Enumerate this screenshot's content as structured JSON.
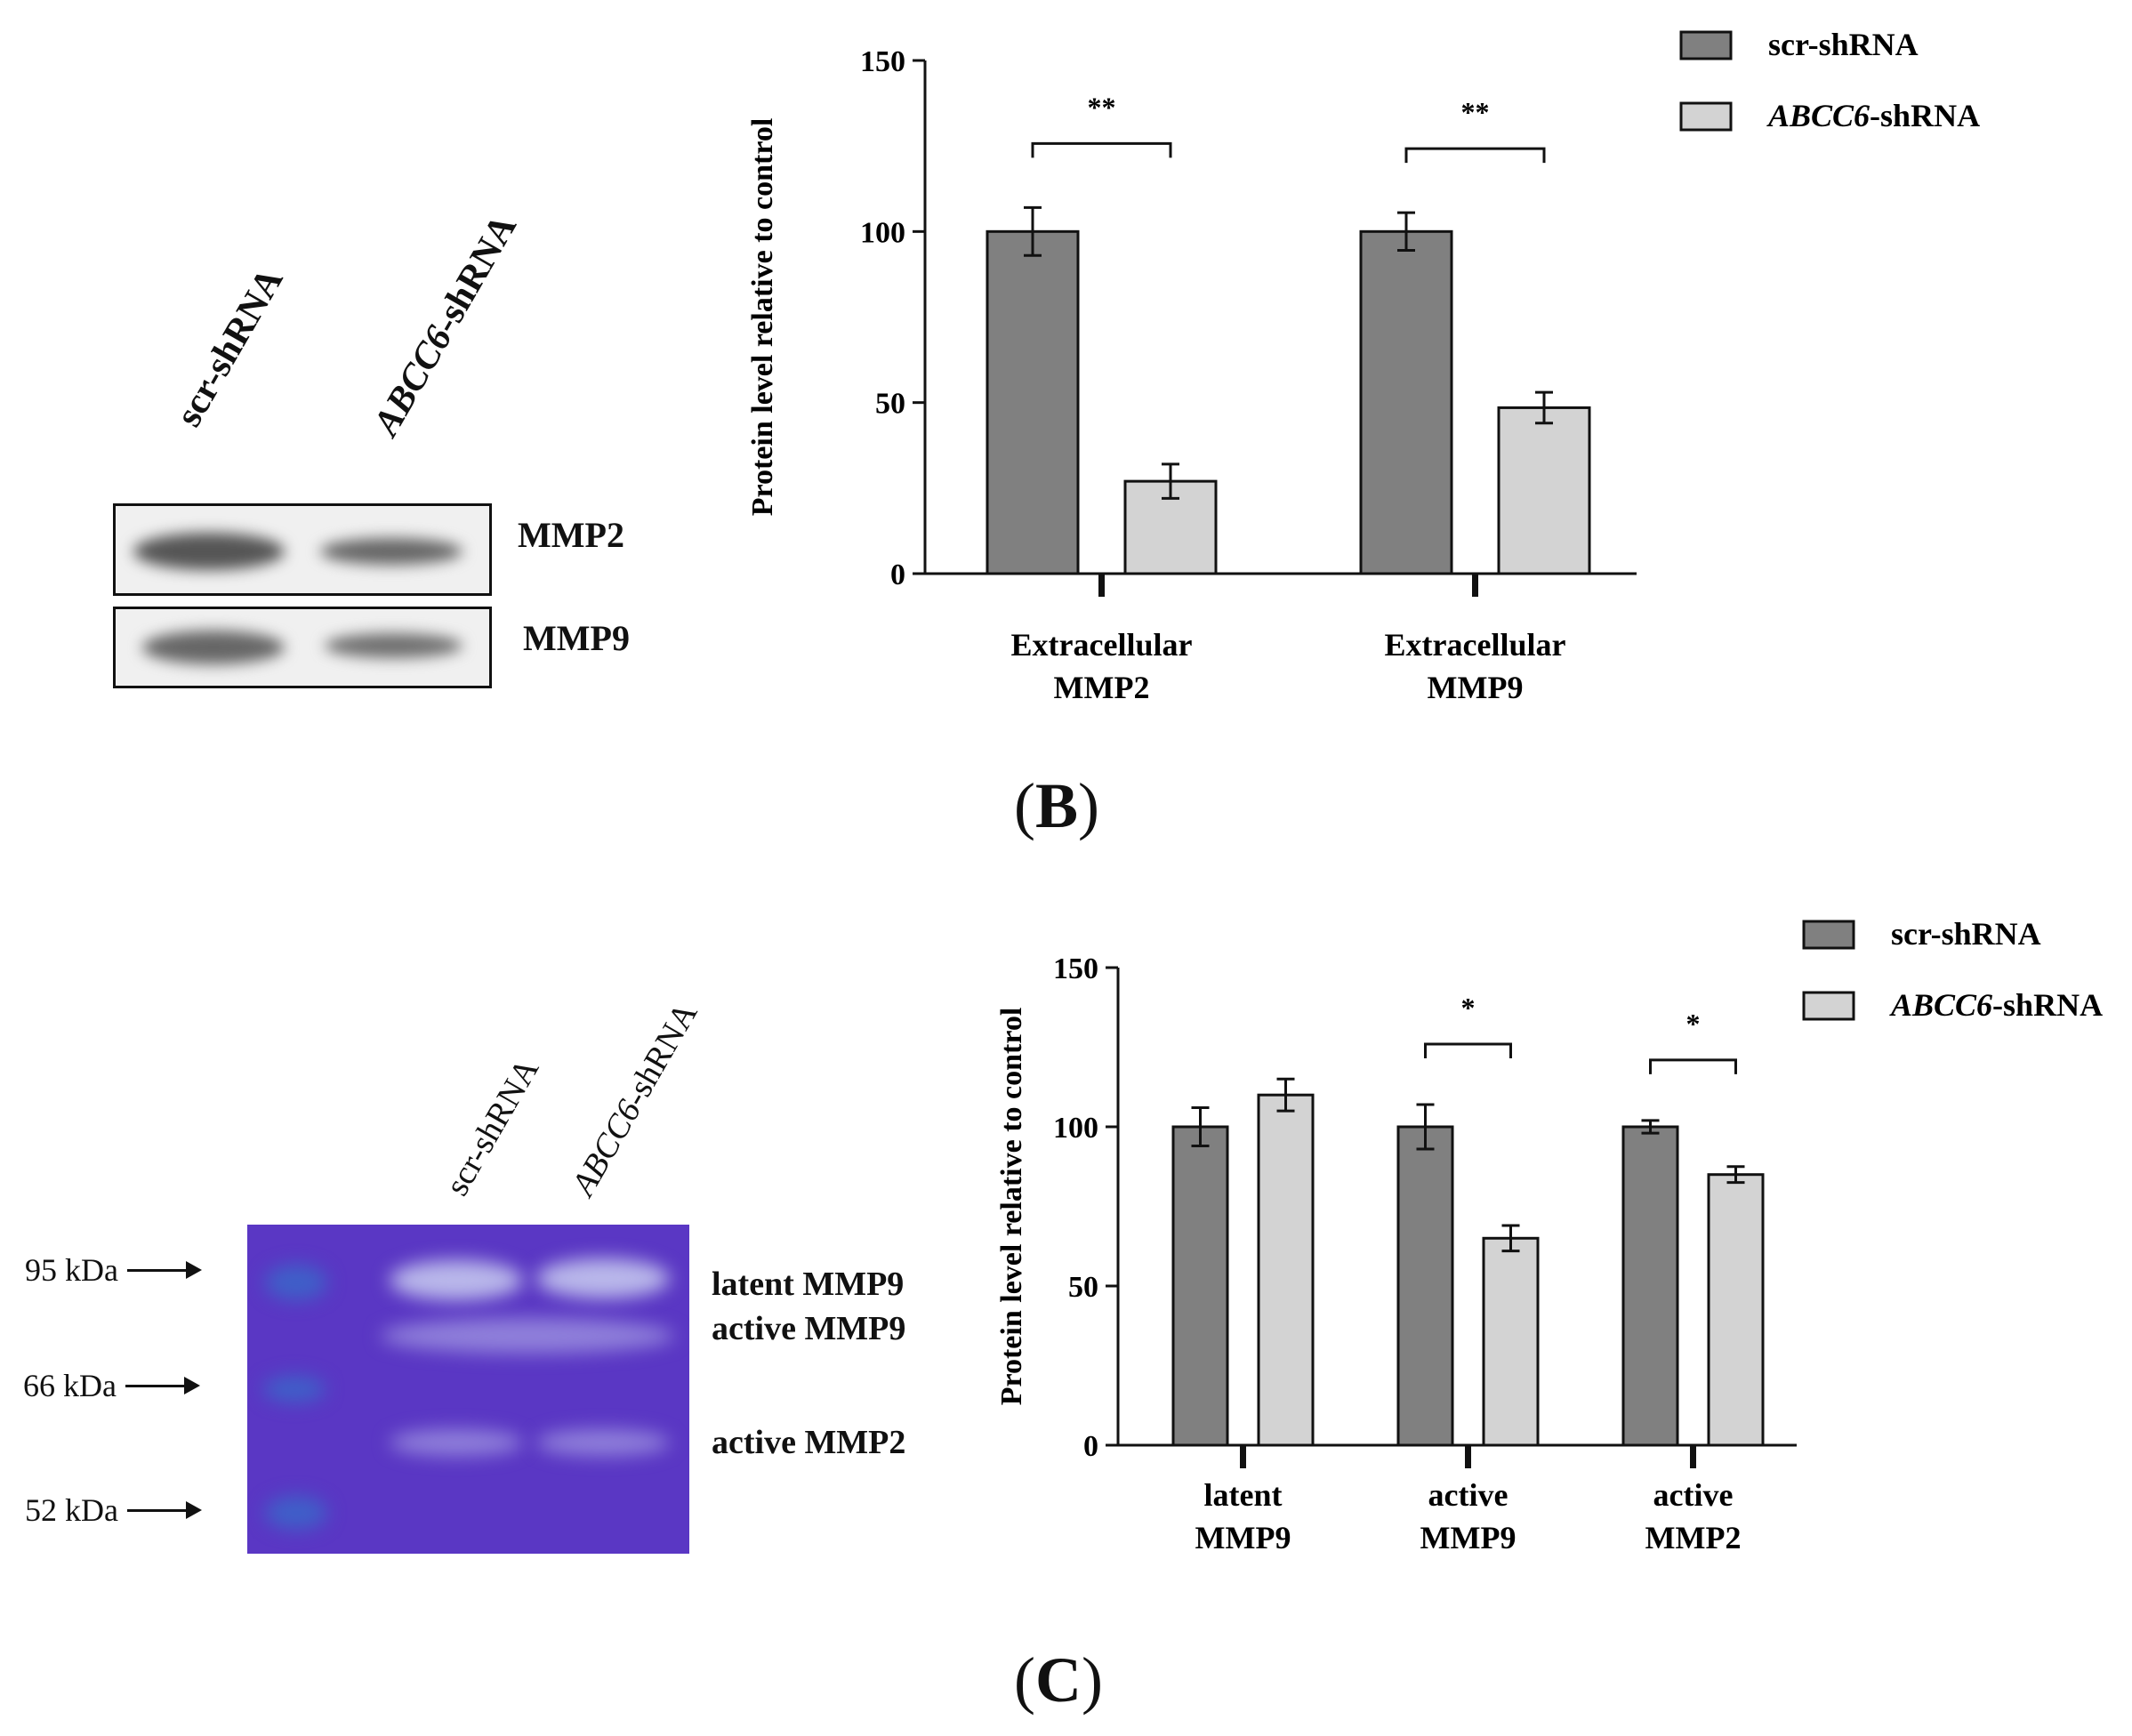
{
  "panel_b": {
    "letter": "B",
    "blot": {
      "lanes": [
        "scr-shRNA",
        "ABCC6-shRNA"
      ],
      "rows": [
        "MMP2",
        "MMP9"
      ]
    }
  },
  "panel_c": {
    "letter": "C",
    "gel": {
      "lanes": [
        "scr-shRNA",
        "ABCC6-shRNA"
      ],
      "markers": [
        "95 kDa",
        "66 kDa",
        "52 kDa"
      ],
      "band_labels": [
        "latent MMP9",
        "active MMP9",
        "active MMP2"
      ]
    }
  },
  "colors": {
    "scr": "#808080",
    "abcc6": "#d3d3d3",
    "gel": "#5a37c4"
  },
  "chart_data": [
    {
      "type": "bar",
      "categories": [
        "Extracellular\nMMP2",
        "Extracellular\nMMP9"
      ],
      "series": [
        {
          "name": "scr-shRNA",
          "values": [
            100,
            100
          ],
          "errors": [
            7,
            5.5
          ]
        },
        {
          "name": "ABCC6-shRNA",
          "values": [
            27,
            48.5
          ],
          "errors": [
            5,
            4.5
          ]
        }
      ],
      "ylabel": "Protein level relative to control",
      "ylim": [
        0,
        150
      ],
      "yticks": [
        0,
        50,
        100,
        150
      ],
      "significance": [
        "**",
        "**"
      ],
      "legend": "top-right"
    },
    {
      "type": "bar",
      "categories": [
        "latent\nMMP9",
        "active\nMMP9",
        "active\nMMP2"
      ],
      "series": [
        {
          "name": "scr-shRNA",
          "values": [
            100,
            100,
            100
          ],
          "errors": [
            6,
            7,
            2
          ]
        },
        {
          "name": "ABCC6-shRNA",
          "values": [
            110,
            65,
            85
          ],
          "errors": [
            5,
            4,
            2.5
          ]
        }
      ],
      "ylabel": "Protein level relative to control",
      "ylim": [
        0,
        150
      ],
      "yticks": [
        0,
        50,
        100,
        150
      ],
      "significance": [
        "",
        "*",
        "*"
      ],
      "legend": "top-right"
    }
  ]
}
